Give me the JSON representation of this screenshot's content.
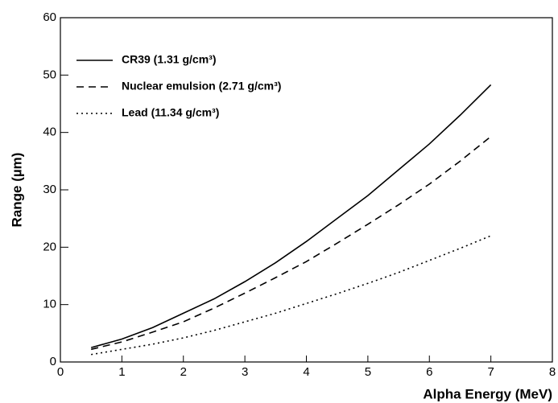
{
  "chart_data": {
    "type": "line",
    "x_label": "Alpha Energy (MeV)",
    "y_label": "Range (µm)",
    "x": [
      0.5,
      1,
      1.5,
      2,
      2.5,
      3,
      3.5,
      4,
      4.5,
      5,
      5.5,
      6,
      6.5,
      7
    ],
    "series": [
      {
        "name": "CR39 (1.31 g/cm³)",
        "color": "#000000",
        "dash": "solid",
        "values": [
          2.5,
          4,
          6,
          8.5,
          11,
          14,
          17.3,
          21,
          25,
          29,
          33.5,
          38,
          43,
          48.3
        ]
      },
      {
        "name": "Nuclear emulsion (2.71 g/cm³)",
        "color": "#000000",
        "dash": "dashed",
        "values": [
          2.2,
          3.5,
          5.2,
          7,
          9.4,
          12,
          14.7,
          17.5,
          20.7,
          24,
          27.4,
          31,
          35,
          39.3
        ]
      },
      {
        "name": "Lead (11.34 g/cm³)",
        "color": "#000000",
        "dash": "dotted",
        "values": [
          1.3,
          2.2,
          3.1,
          4.2,
          5.5,
          7,
          8.5,
          10.2,
          11.9,
          13.7,
          15.6,
          17.7,
          19.8,
          22
        ]
      }
    ],
    "xlim": [
      0,
      8
    ],
    "ylim": [
      0,
      60
    ],
    "xticks": [
      0,
      1,
      2,
      3,
      4,
      5,
      6,
      7,
      8
    ],
    "yticks": [
      0,
      10,
      20,
      30,
      40,
      50,
      60
    ],
    "legend": "upper left"
  }
}
